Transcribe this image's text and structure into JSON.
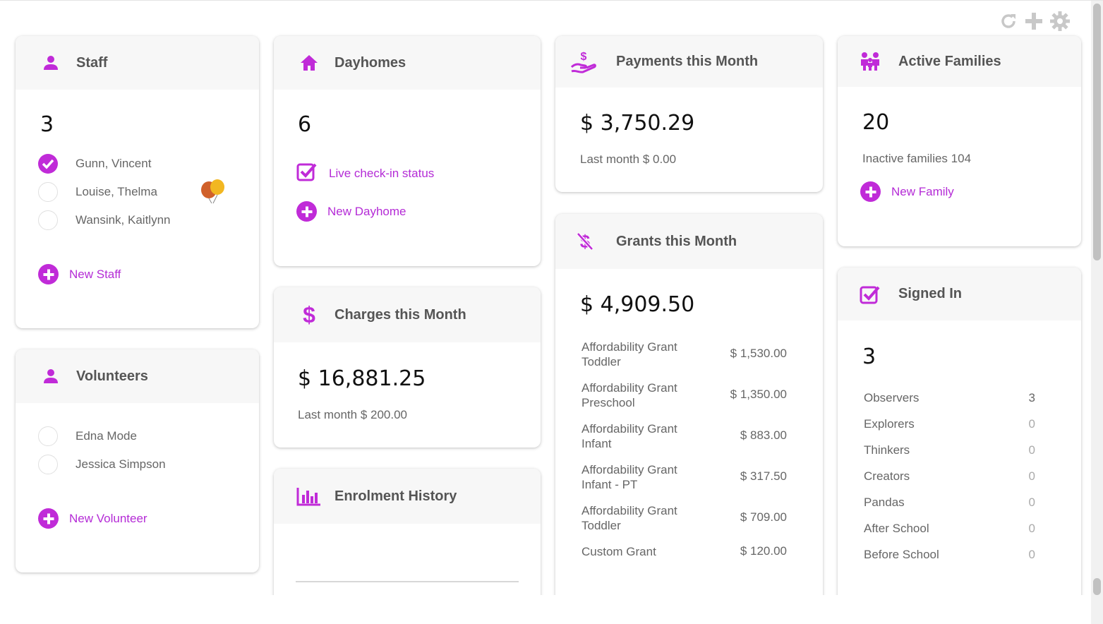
{
  "toolbar": {
    "refresh_icon": "refresh-icon",
    "add_icon": "plus-icon",
    "settings_icon": "gear-icon"
  },
  "accent_color": "#c02bd8",
  "staff": {
    "title": "Staff",
    "count": "3",
    "members": [
      "Gunn, Vincent",
      "Louise, Thelma",
      "Wansink, Kaitlynn"
    ],
    "new_label": "New Staff"
  },
  "volunteers": {
    "title": "Volunteers",
    "members": [
      "Edna Mode",
      "Jessica Simpson"
    ],
    "new_label": "New Volunteer"
  },
  "dayhomes": {
    "title": "Dayhomes",
    "count": "6",
    "checkin_label": "Live check-in status",
    "new_label": "New Dayhome"
  },
  "charges": {
    "title": "Charges this Month",
    "amount": "$ 16,881.25",
    "last_month": "Last month $ 200.00"
  },
  "enrolment": {
    "title": "Enrolment History"
  },
  "payments": {
    "title": "Payments this Month",
    "amount": "$ 3,750.29",
    "last_month": "Last month $ 0.00"
  },
  "grants": {
    "title": "Grants this Month",
    "amount": "$ 4,909.50",
    "items": [
      {
        "name": "Affordability Grant Toddler",
        "value": "$ 1,530.00"
      },
      {
        "name": "Affordability Grant Preschool",
        "value": "$ 1,350.00"
      },
      {
        "name": "Affordability Grant Infant",
        "value": "$ 883.00"
      },
      {
        "name": "Affordability Grant Infant - PT",
        "value": "$ 317.50"
      },
      {
        "name": "Affordability Grant Toddler",
        "value": "$ 709.00"
      },
      {
        "name": "Custom Grant",
        "value": "$ 120.00"
      }
    ]
  },
  "families": {
    "title": "Active Families",
    "count": "20",
    "inactive": "Inactive families 104",
    "new_label": "New Family"
  },
  "signed_in": {
    "title": "Signed In",
    "count": "3",
    "classes": [
      {
        "name": "Observers",
        "count": "3"
      },
      {
        "name": "Explorers",
        "count": "0"
      },
      {
        "name": "Thinkers",
        "count": "0"
      },
      {
        "name": "Creators",
        "count": "0"
      },
      {
        "name": "Pandas",
        "count": "0"
      },
      {
        "name": "After School",
        "count": "0"
      },
      {
        "name": "Before School",
        "count": "0"
      }
    ]
  }
}
